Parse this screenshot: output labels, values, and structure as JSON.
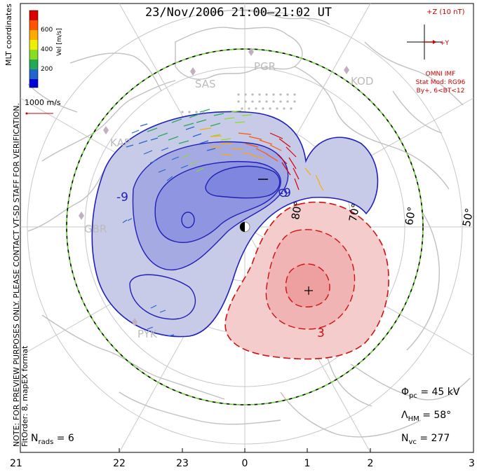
{
  "title": "23/Nov/2006 21:00–21:02 UT",
  "imf": {
    "z_label": "+Z (10 nT)",
    "y_label": "+Y",
    "source": "OMNI IMF",
    "stat_model": "Stat Mod: RG96",
    "condition": "By+, 6<BT<12"
  },
  "velocity_scale": {
    "label": "Vel [m/s]",
    "ticks": [
      "600",
      "400",
      "200"
    ],
    "colors": [
      "#0000d8",
      "#2266cc",
      "#22aa55",
      "#88dd22",
      "#eeee00",
      "#ffaa00",
      "#ff5500",
      "#dd0000"
    ]
  },
  "coord_label": "MLT coordinates",
  "reference_vector": "1000 m/s",
  "note_line1": "NOTE: FOR PREVIEW PURPOSES ONLY. PLEASE CONTACT VT-SD STAFF FOR VERIFICATION.",
  "note_line2": "FitOrder: 8, mapEX format",
  "stats": {
    "phi_pc_sym": "Φ",
    "phi_pc_sub": "pc",
    "phi_pc_value": "= 45 kV",
    "lambda_sym": "Λ",
    "lambda_sub": "HM",
    "lambda_value": "= 58°",
    "nvc_sym": "N",
    "nvc_sub": "vc",
    "nvc_value": "= 277",
    "nrads_sym": "N",
    "nrads_sub": "rads",
    "nrads_value": "= 6"
  },
  "mlt_ticks": [
    "21",
    "22",
    "23",
    "0",
    "1",
    "2",
    "3"
  ],
  "latitude_labels": [
    "80°",
    "70°",
    "60°",
    "50°"
  ],
  "radars": [
    "PGR",
    "SAS",
    "KOD",
    "KAP",
    "GBR",
    "PYK"
  ],
  "contour_labels": [
    "-9",
    "-9",
    "3"
  ],
  "colors": {
    "negative_fill": "#c8cbe8",
    "negative_fill_mid": "#a5aae2",
    "negative_fill_core": "#7f86e0",
    "negative_line": "#2020b8",
    "positive_fill": "#f4c8c8",
    "positive_fill_core": "#eea0a0",
    "positive_line": "#d01010",
    "coast": "#c8c8c8",
    "grid": "#c8c8c8",
    "boundary_green": "#66cc33"
  }
}
